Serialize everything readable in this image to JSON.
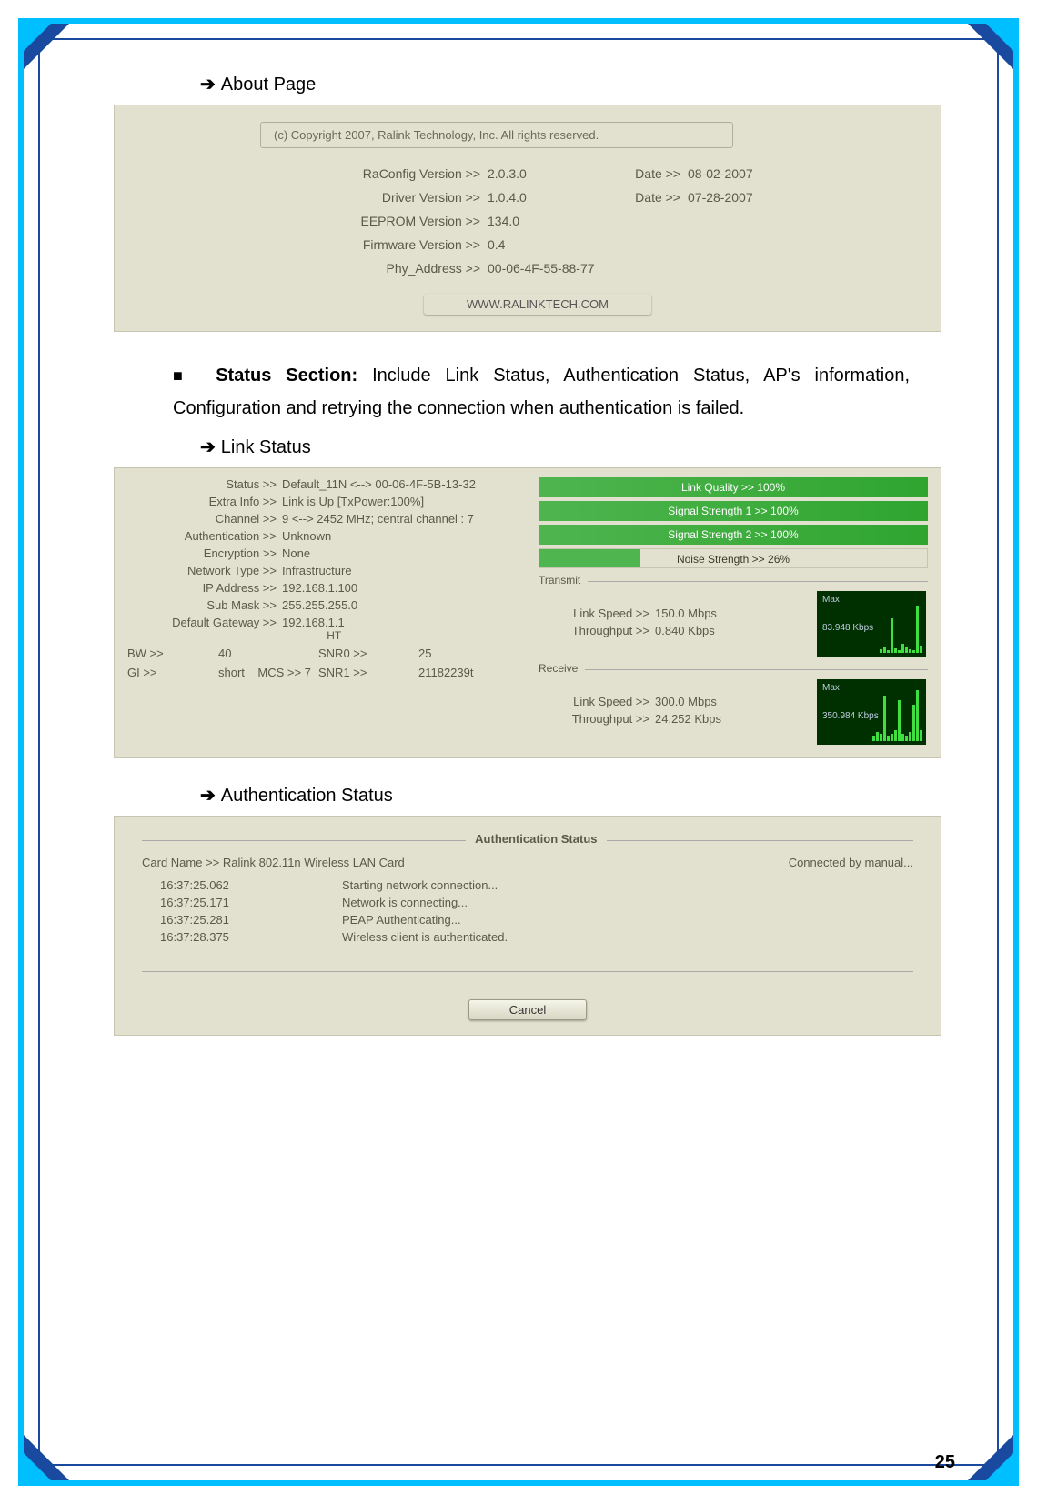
{
  "page_number": "25",
  "sections": {
    "about_heading": "About Page",
    "link_status_heading": "Link Status",
    "auth_status_heading": "Authentication Status"
  },
  "body_paragraph": {
    "bold": "Status Section:",
    "rest": " Include Link Status, Authentication Status, AP's information, Configuration and retrying the connection when authentication is failed."
  },
  "about_panel": {
    "copyright": "(c) Copyright 2007, Ralink Technology, Inc.  All rights reserved.",
    "rows": [
      {
        "label": "RaConfig Version >>",
        "value": "2.0.3.0",
        "date_label": "Date >>",
        "date_value": "08-02-2007"
      },
      {
        "label": "Driver Version >>",
        "value": "1.0.4.0",
        "date_label": "Date >>",
        "date_value": "07-28-2007"
      },
      {
        "label": "EEPROM Version >>",
        "value": "134.0",
        "date_label": "",
        "date_value": ""
      },
      {
        "label": "Firmware Version >>",
        "value": "0.4",
        "date_label": "",
        "date_value": ""
      },
      {
        "label": "Phy_Address >>",
        "value": "00-06-4F-55-88-77",
        "date_label": "",
        "date_value": ""
      }
    ],
    "link_button": "WWW.RALINKTECH.COM"
  },
  "link_status_panel": {
    "left_rows": [
      {
        "label": "Status >>",
        "value": "Default_11N <--> 00-06-4F-5B-13-32"
      },
      {
        "label": "Extra Info >>",
        "value": "Link is Up [TxPower:100%]"
      },
      {
        "label": "Channel >>",
        "value": "9 <--> 2452 MHz; central channel : 7"
      },
      {
        "label": "Authentication >>",
        "value": "Unknown"
      },
      {
        "label": "Encryption >>",
        "value": "None"
      },
      {
        "label": "Network Type >>",
        "value": "Infrastructure"
      },
      {
        "label": "IP Address >>",
        "value": "192.168.1.100"
      },
      {
        "label": "Sub Mask >>",
        "value": "255.255.255.0"
      },
      {
        "label": "Default Gateway >>",
        "value": "192.168.1.1"
      }
    ],
    "ht": {
      "legend": "HT",
      "bw_label": "BW >>",
      "bw_value": "40",
      "gi_label": "GI >>",
      "gi_value": "short",
      "mcs_label": "MCS >>",
      "mcs_value": "7",
      "snr0_label": "SNR0 >>",
      "snr0_value": "25",
      "snr1_label": "SNR1 >>",
      "snr1_value": "21182239t"
    },
    "bars": {
      "link_quality": "Link Quality >> 100%",
      "signal1": "Signal Strength 1 >> 100%",
      "signal2": "Signal Strength 2 >> 100%",
      "noise": "Noise Strength >> 26%",
      "bar_color": "#3aa63a",
      "noise_pct": 26
    },
    "transmit": {
      "legend": "Transmit",
      "link_speed_label": "Link Speed >>",
      "link_speed_value": "150.0 Mbps",
      "throughput_label": "Throughput >>",
      "throughput_value": "0.840 Kbps",
      "graph_max": "Max",
      "graph_num": "83.948 Kbps",
      "graph_bg": "#003000",
      "graph_bar_color": "#3fdf3f",
      "graph_bars": [
        4,
        6,
        3,
        38,
        5,
        3,
        10,
        6,
        4,
        3,
        52,
        8
      ]
    },
    "receive": {
      "legend": "Receive",
      "link_speed_label": "Link Speed >>",
      "link_speed_value": "300.0 Mbps",
      "throughput_label": "Throughput >>",
      "throughput_value": "24.252 Kbps",
      "graph_max": "Max",
      "graph_num": "350.984 Kbps",
      "graph_bg": "#003000",
      "graph_bar_color": "#3fdf3f",
      "graph_bars": [
        6,
        10,
        8,
        50,
        6,
        8,
        12,
        45,
        8,
        6,
        10,
        40,
        56,
        12
      ]
    }
  },
  "auth_panel": {
    "legend": "Authentication Status",
    "card_label": "Card Name >>",
    "card_value": "Ralink 802.11n Wireless LAN Card",
    "status_text": "Connected by manual...",
    "log": [
      {
        "time": "16:37:25.062",
        "msg": "Starting network connection..."
      },
      {
        "time": "16:37:25.171",
        "msg": "Network is connecting..."
      },
      {
        "time": "16:37:25.281",
        "msg": "PEAP Authenticating..."
      },
      {
        "time": "16:37:28.375",
        "msg": "Wireless client is authenticated."
      }
    ],
    "cancel_button": "Cancel"
  },
  "frame_colors": {
    "outer": "#00bfff",
    "inner": "#1a4aa0"
  }
}
